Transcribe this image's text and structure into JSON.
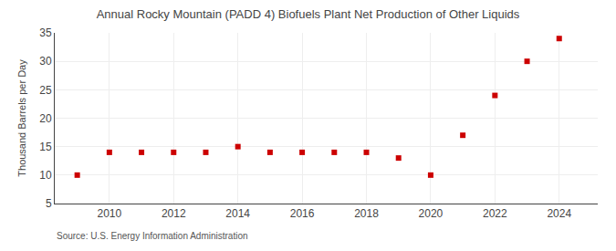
{
  "chart_data": {
    "type": "scatter",
    "title": "Annual Rocky Mountain (PADD 4) Biofuels Plant Net Production of Other Liquids",
    "ylabel": "Thousand Barrels per Day",
    "annotations": [
      "Source: U.S. Energy Information Administration"
    ],
    "x": [
      2009,
      2010,
      2011,
      2012,
      2013,
      2014,
      2015,
      2016,
      2017,
      2018,
      2019,
      2020,
      2021,
      2022,
      2023,
      2024
    ],
    "values": [
      10,
      14,
      14,
      14,
      14,
      15,
      14,
      14,
      14,
      14,
      13,
      10,
      17,
      24,
      30,
      34
    ],
    "color": "#cc0000",
    "marker": "square",
    "xlim": [
      2008.3,
      2025.2
    ],
    "ylim": [
      5,
      35
    ],
    "xticks": [
      2010,
      2012,
      2014,
      2016,
      2018,
      2020,
      2022,
      2024
    ],
    "yticks": [
      5,
      10,
      15,
      20,
      25,
      30,
      35
    ],
    "grid": true
  }
}
